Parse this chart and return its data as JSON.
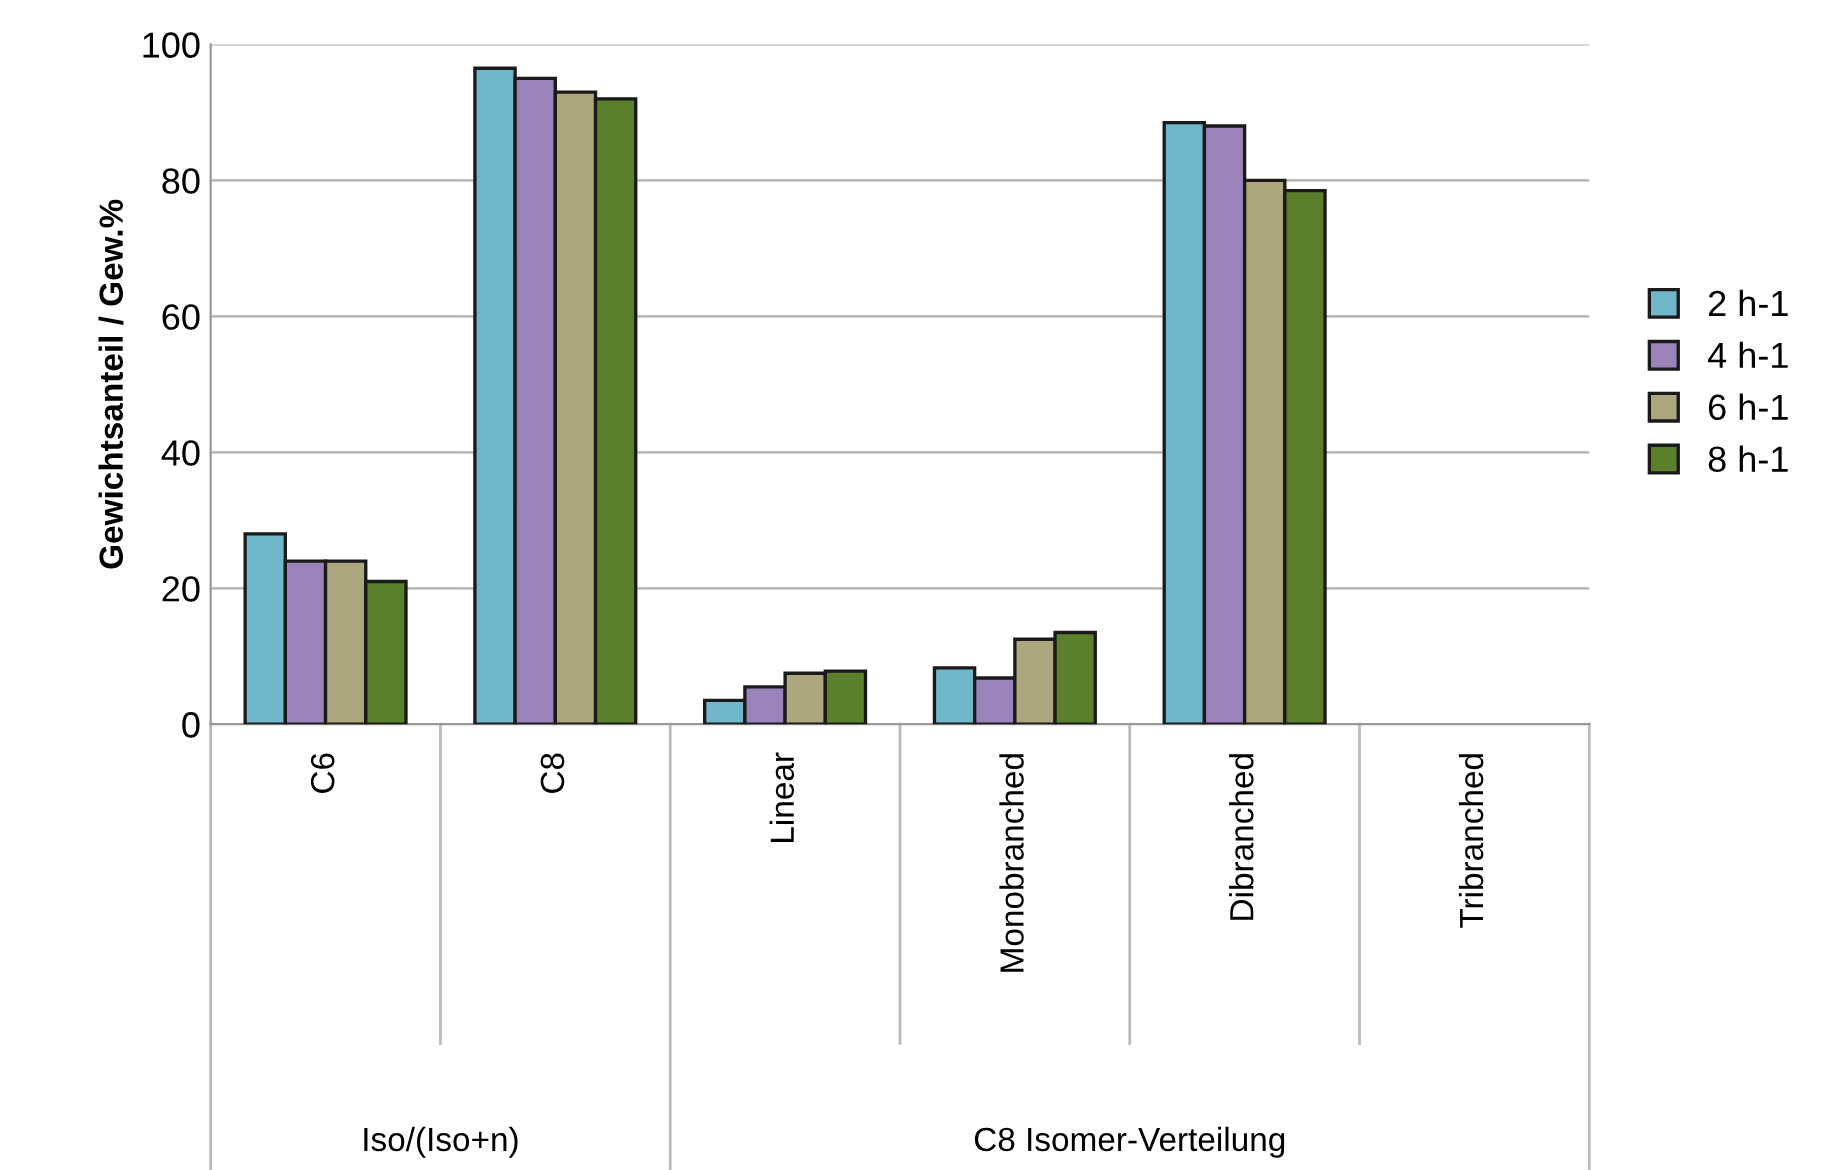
{
  "chart_data": {
    "type": "bar",
    "ylabel": "Gewichtsanteil / Gew.%",
    "categories": [
      "C6",
      "C8",
      "Linear",
      "Monobranched",
      "Dibranched",
      "Tribranched"
    ],
    "series": [
      {
        "name": "2 h-1",
        "color": "#6fb7c9",
        "values": [
          28,
          96.5,
          3.5,
          8.3,
          88.5,
          null
        ]
      },
      {
        "name": "4 h-1",
        "color": "#9a83b8",
        "values": [
          24,
          95,
          5.5,
          6.8,
          88,
          null
        ]
      },
      {
        "name": "6 h-1",
        "color": "#aca77e",
        "values": [
          24,
          93,
          7.5,
          12.5,
          80,
          null
        ]
      },
      {
        "name": "8 h-1",
        "color": "#5b7f2b",
        "values": [
          21,
          92,
          7.8,
          13.5,
          78.5,
          null
        ]
      }
    ],
    "ylim": [
      0,
      100
    ],
    "yticks": [
      0,
      20,
      40,
      60,
      80,
      100
    ],
    "grid": "y",
    "legend": "right",
    "annotations": [
      "Iso/(Iso+n)",
      "C8 Isomer-Verteilung"
    ]
  }
}
